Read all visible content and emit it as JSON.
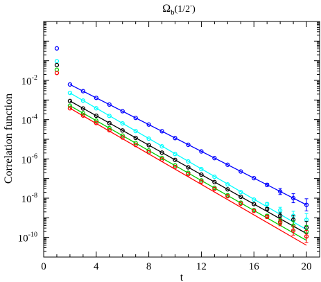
{
  "chart_data": {
    "type": "scatter",
    "title": "Ω_b(1/2^-)",
    "title_parts": {
      "main": "Ω",
      "sub": "b",
      "paren_open": "(1/2",
      "sup": "-",
      "paren_close": ")"
    },
    "xlabel": "t",
    "ylabel": "Correlation function",
    "xlim": [
      0,
      21
    ],
    "ylim_log10": [
      -11,
      1
    ],
    "yscale": "log",
    "grid": false,
    "legend": "none",
    "x_ticks": [
      "0",
      "4",
      "8",
      "12",
      "16",
      "20"
    ],
    "x_tick_values": [
      0,
      4,
      8,
      12,
      16,
      20
    ],
    "y_ticks": [
      {
        "base": "10",
        "exp": "-2",
        "value_log10": -2
      },
      {
        "base": "10",
        "exp": "-4",
        "value_log10": -4
      },
      {
        "base": "10",
        "exp": "-6",
        "value_log10": -6
      },
      {
        "base": "10",
        "exp": "-8",
        "value_log10": -8
      },
      {
        "base": "10",
        "exp": "-10",
        "value_log10": -10
      }
    ],
    "fit_range": [
      2,
      20
    ],
    "series": [
      {
        "color": "#0000ff",
        "x": [
          1,
          2,
          3,
          4,
          5,
          6,
          7,
          8,
          9,
          10,
          11,
          12,
          13,
          14,
          15,
          16,
          17,
          18,
          19,
          20
        ],
        "log10_y": [
          -0.37,
          -2.21,
          -2.55,
          -2.89,
          -3.23,
          -3.57,
          -3.91,
          -4.25,
          -4.59,
          -4.94,
          -5.28,
          -5.62,
          -5.96,
          -6.3,
          -6.64,
          -6.98,
          -7.32,
          -7.66,
          -8.0,
          -8.34
        ],
        "fit_log10_y": [
          -2.21,
          -8.34
        ]
      },
      {
        "color": "#00ffff",
        "x": [
          1,
          2,
          3,
          4,
          5,
          6,
          7,
          8,
          9,
          10,
          11,
          12,
          13,
          14,
          15,
          16,
          17,
          18,
          19,
          20
        ],
        "log10_y": [
          -1.02,
          -2.64,
          -3.03,
          -3.42,
          -3.81,
          -4.19,
          -4.58,
          -4.97,
          -5.36,
          -5.75,
          -6.13,
          -6.52,
          -6.91,
          -7.3,
          -7.69,
          -8.07,
          -8.3,
          -8.62,
          -8.9,
          -9.1
        ],
        "fit_log10_y": [
          -2.64,
          -9.6
        ]
      },
      {
        "color": "#000000",
        "x": [
          1,
          2,
          3,
          4,
          5,
          6,
          7,
          8,
          9,
          10,
          11,
          12,
          13,
          14,
          15,
          16,
          17,
          18,
          19,
          20
        ],
        "log10_y": [
          -1.22,
          -3.05,
          -3.43,
          -3.8,
          -4.18,
          -4.55,
          -4.93,
          -5.3,
          -5.68,
          -6.05,
          -6.43,
          -6.8,
          -7.18,
          -7.55,
          -7.93,
          -8.3,
          -8.55,
          -8.9,
          -9.1,
          -9.5
        ],
        "fit_log10_y": [
          -3.05,
          -9.8
        ]
      },
      {
        "color": "#00cc00",
        "x": [
          1,
          2,
          3,
          4,
          5,
          6,
          7,
          8,
          9,
          10,
          11,
          12,
          13,
          14,
          15,
          16,
          17,
          18,
          19,
          20
        ],
        "log10_y": [
          -1.46,
          -3.29,
          -3.67,
          -4.05,
          -4.43,
          -4.81,
          -5.19,
          -5.57,
          -5.95,
          -6.33,
          -6.71,
          -7.09,
          -7.47,
          -7.85,
          -8.23,
          -8.61,
          -8.9,
          -9.2,
          -9.4,
          -9.7
        ],
        "fit_log10_y": [
          -3.29,
          -10.15
        ]
      },
      {
        "color": "#ff0000",
        "x": [
          1,
          2,
          3,
          4,
          5,
          6,
          7,
          8,
          9,
          10,
          11,
          12,
          13,
          14,
          15,
          16,
          17,
          18,
          19,
          20
        ],
        "log10_y": [
          -1.62,
          -3.42,
          -3.79,
          -4.17,
          -4.54,
          -4.91,
          -5.29,
          -5.66,
          -6.03,
          -6.41,
          -6.78,
          -7.16,
          -7.53,
          -7.9,
          -8.28,
          -8.65,
          -8.95,
          -9.25,
          -9.65,
          -9.95
        ],
        "fit_log10_y": [
          -3.42,
          -10.4
        ]
      }
    ]
  }
}
